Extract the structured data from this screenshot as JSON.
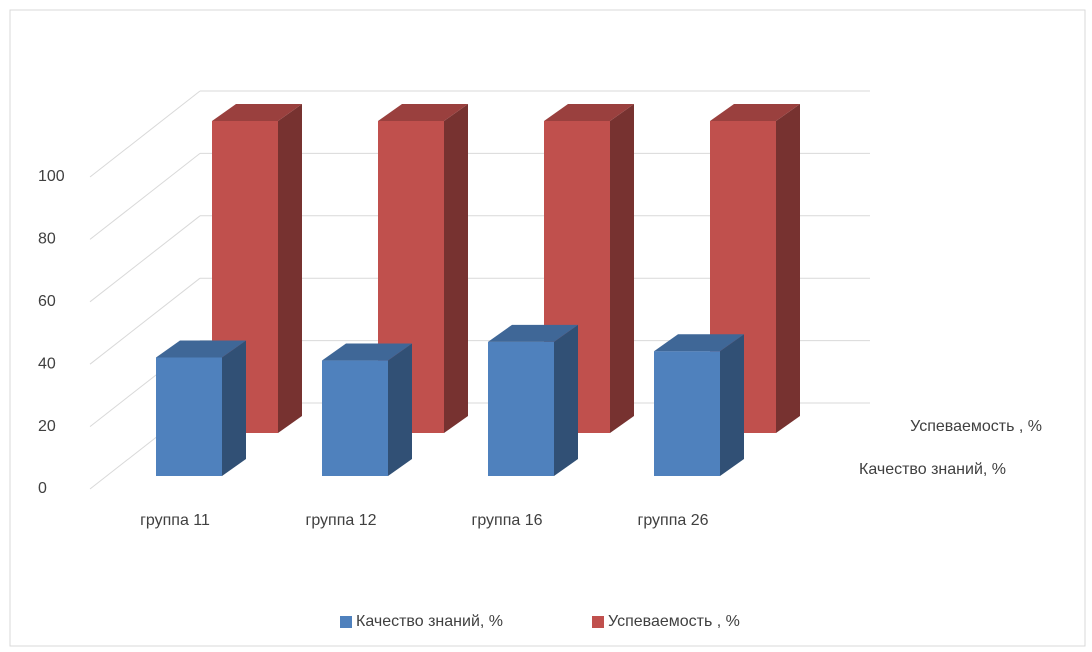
{
  "chart_data": {
    "type": "bar3d",
    "categories": [
      "группа 11",
      "группа 12",
      "группа 16",
      "группа 26"
    ],
    "series": [
      {
        "name": "Качество знаний, %",
        "color": "#4f81bd",
        "values": [
          38,
          37,
          43,
          40
        ]
      },
      {
        "name": "Успеваемость , %",
        "color": "#c0504d",
        "values": [
          100,
          100,
          100,
          100
        ]
      }
    ],
    "ylim": [
      0,
      100
    ],
    "yticks": [
      0,
      20,
      40,
      60,
      80,
      100
    ],
    "grid": true,
    "legend": "bottom"
  }
}
